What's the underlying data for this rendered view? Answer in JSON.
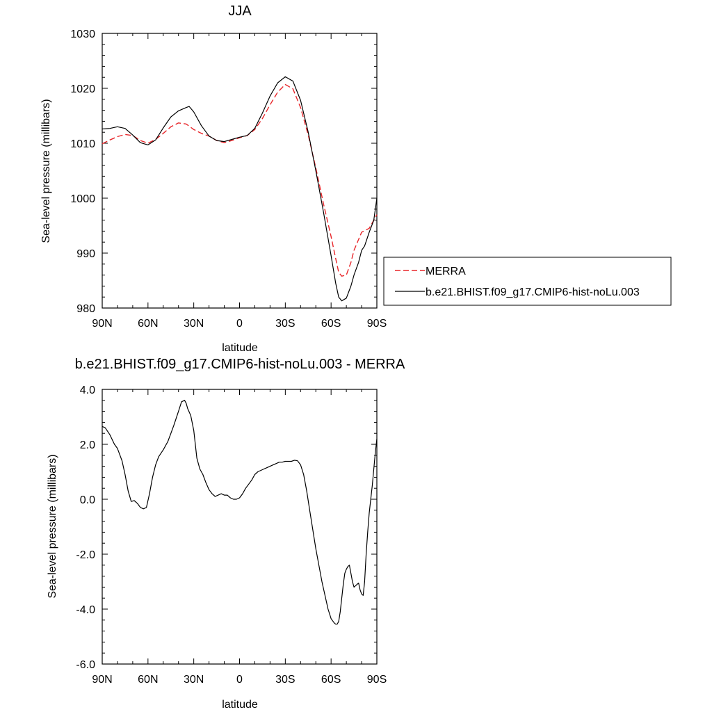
{
  "chart_data": [
    {
      "type": "line",
      "title": "JJA",
      "xlabel": "latitude",
      "ylabel": "Sea-level pressure (millibars)",
      "xlim": [
        90,
        -90
      ],
      "ylim": [
        980,
        1030
      ],
      "xticks": [
        {
          "value": 90,
          "label": "90N"
        },
        {
          "value": 60,
          "label": "60N"
        },
        {
          "value": 30,
          "label": "30N"
        },
        {
          "value": 0,
          "label": "0"
        },
        {
          "value": -30,
          "label": "30S"
        },
        {
          "value": -60,
          "label": "60S"
        },
        {
          "value": -90,
          "label": "90S"
        }
      ],
      "yticks": [
        {
          "value": 980,
          "label": "980"
        },
        {
          "value": 990,
          "label": "990"
        },
        {
          "value": 1000,
          "label": "1000"
        },
        {
          "value": 1010,
          "label": "1010"
        },
        {
          "value": 1020,
          "label": "1020"
        },
        {
          "value": 1030,
          "label": "1030"
        }
      ],
      "legend_position": "right",
      "series": [
        {
          "name": "MERRA",
          "color": "#e8262a",
          "dash": true,
          "x": [
            90,
            85,
            80,
            75,
            70,
            65,
            60,
            55,
            50,
            45,
            40,
            35,
            30,
            25,
            20,
            15,
            10,
            5,
            0,
            -5,
            -10,
            -15,
            -20,
            -25,
            -30,
            -35,
            -40,
            -45,
            -50,
            -55,
            -60,
            -63,
            -65,
            -67,
            -70,
            -73,
            -75,
            -80,
            -85,
            -90
          ],
          "y": [
            1009.9,
            1010.6,
            1011.2,
            1011.6,
            1011.4,
            1010.5,
            1010.0,
            1010.7,
            1011.8,
            1013.0,
            1013.7,
            1013.5,
            1012.5,
            1011.8,
            1011.3,
            1010.5,
            1010.1,
            1010.5,
            1011.0,
            1011.4,
            1012.5,
            1014.5,
            1017.0,
            1019.3,
            1020.7,
            1019.9,
            1016.5,
            1011.5,
            1005.5,
            999.0,
            993.0,
            989.0,
            986.5,
            985.8,
            986.0,
            988.3,
            990.5,
            993.8,
            994.5,
            997.0
          ]
        },
        {
          "name": "b.e21.BHIST.f09_g17.CMIP6-hist-noLu.003",
          "color": "#000000",
          "dash": false,
          "x": [
            90,
            85,
            80,
            75,
            70,
            65,
            60,
            55,
            50,
            45,
            40,
            35,
            33,
            30,
            25,
            20,
            15,
            10,
            5,
            0,
            -5,
            -10,
            -15,
            -20,
            -25,
            -30,
            -35,
            -40,
            -45,
            -50,
            -55,
            -60,
            -63,
            -65,
            -67,
            -70,
            -73,
            -75,
            -78,
            -80,
            -82,
            -85,
            -88,
            -90
          ],
          "y": [
            1012.6,
            1012.7,
            1013.0,
            1012.7,
            1011.5,
            1010.1,
            1009.7,
            1010.6,
            1012.8,
            1014.8,
            1015.9,
            1016.5,
            1016.7,
            1015.7,
            1013.2,
            1011.3,
            1010.5,
            1010.3,
            1010.7,
            1011.1,
            1011.4,
            1012.7,
            1015.5,
            1018.6,
            1021.0,
            1022.1,
            1021.3,
            1017.8,
            1012.0,
            1005.0,
            997.5,
            989.5,
            984.5,
            982.0,
            981.3,
            981.8,
            984.0,
            986.0,
            988.3,
            990.5,
            991.3,
            993.8,
            996.0,
            1000.0
          ]
        }
      ]
    },
    {
      "type": "line",
      "title": "b.e21.BHIST.f09_g17.CMIP6-hist-noLu.003 - MERRA",
      "xlabel": "latitude",
      "ylabel": "Sea-level pressure (millibars)",
      "xlim": [
        90,
        -90
      ],
      "ylim": [
        -6,
        4
      ],
      "xticks": [
        {
          "value": 90,
          "label": "90N"
        },
        {
          "value": 60,
          "label": "60N"
        },
        {
          "value": 30,
          "label": "30N"
        },
        {
          "value": 0,
          "label": "0"
        },
        {
          "value": -30,
          "label": "30S"
        },
        {
          "value": -60,
          "label": "60S"
        },
        {
          "value": -90,
          "label": "90S"
        }
      ],
      "yticks": [
        {
          "value": -6,
          "label": "-6.0"
        },
        {
          "value": -4,
          "label": "-4.0"
        },
        {
          "value": -2,
          "label": "-2.0"
        },
        {
          "value": 0,
          "label": "0.0"
        },
        {
          "value": 2,
          "label": "2.0"
        },
        {
          "value": 4,
          "label": "4.0"
        }
      ],
      "series": [
        {
          "color": "#000000",
          "dash": false,
          "x": [
            90,
            88,
            85,
            82,
            80,
            77,
            75,
            73,
            71,
            69,
            67,
            65,
            63,
            61,
            59,
            57,
            55,
            53,
            50,
            47,
            45,
            43,
            40,
            38,
            36,
            35,
            34,
            32,
            30,
            29,
            28,
            26,
            24,
            22,
            20,
            18,
            16,
            14,
            12,
            10,
            8,
            6,
            4,
            2,
            0,
            -2,
            -4,
            -6,
            -8,
            -10,
            -12,
            -14,
            -16,
            -18,
            -20,
            -22,
            -24,
            -26,
            -28,
            -30,
            -32,
            -34,
            -36,
            -38,
            -40,
            -42,
            -44,
            -46,
            -48,
            -50,
            -52,
            -54,
            -56,
            -58,
            -60,
            -62,
            -63,
            -64,
            -65,
            -66,
            -67,
            -68,
            -69,
            -70,
            -71,
            -72,
            -73,
            -74,
            -75,
            -76,
            -77,
            -78,
            -79,
            -80,
            -81,
            -82,
            -83,
            -84,
            -85,
            -86,
            -87,
            -88,
            -89,
            -90
          ],
          "y": [
            2.65,
            2.6,
            2.35,
            2.0,
            1.85,
            1.4,
            0.9,
            0.3,
            -0.08,
            -0.05,
            -0.15,
            -0.3,
            -0.35,
            -0.3,
            0.2,
            0.8,
            1.25,
            1.55,
            1.8,
            2.1,
            2.4,
            2.7,
            3.2,
            3.55,
            3.6,
            3.5,
            3.3,
            3.05,
            2.5,
            2.0,
            1.5,
            1.1,
            0.9,
            0.6,
            0.35,
            0.2,
            0.1,
            0.15,
            0.2,
            0.15,
            0.15,
            0.05,
            0.0,
            0.0,
            0.05,
            0.2,
            0.4,
            0.55,
            0.7,
            0.9,
            1.0,
            1.05,
            1.1,
            1.15,
            1.2,
            1.25,
            1.3,
            1.35,
            1.35,
            1.38,
            1.38,
            1.38,
            1.42,
            1.4,
            1.25,
            0.9,
            0.3,
            -0.4,
            -1.1,
            -1.8,
            -2.4,
            -3.0,
            -3.5,
            -4.0,
            -4.35,
            -4.5,
            -4.55,
            -4.55,
            -4.45,
            -4.1,
            -3.6,
            -3.1,
            -2.7,
            -2.55,
            -2.45,
            -2.4,
            -2.7,
            -3.0,
            -3.2,
            -3.15,
            -3.1,
            -3.05,
            -3.3,
            -3.45,
            -3.5,
            -3.0,
            -2.0,
            -1.2,
            -0.5,
            0.0,
            0.5,
            1.1,
            1.7,
            2.2
          ]
        }
      ]
    }
  ]
}
